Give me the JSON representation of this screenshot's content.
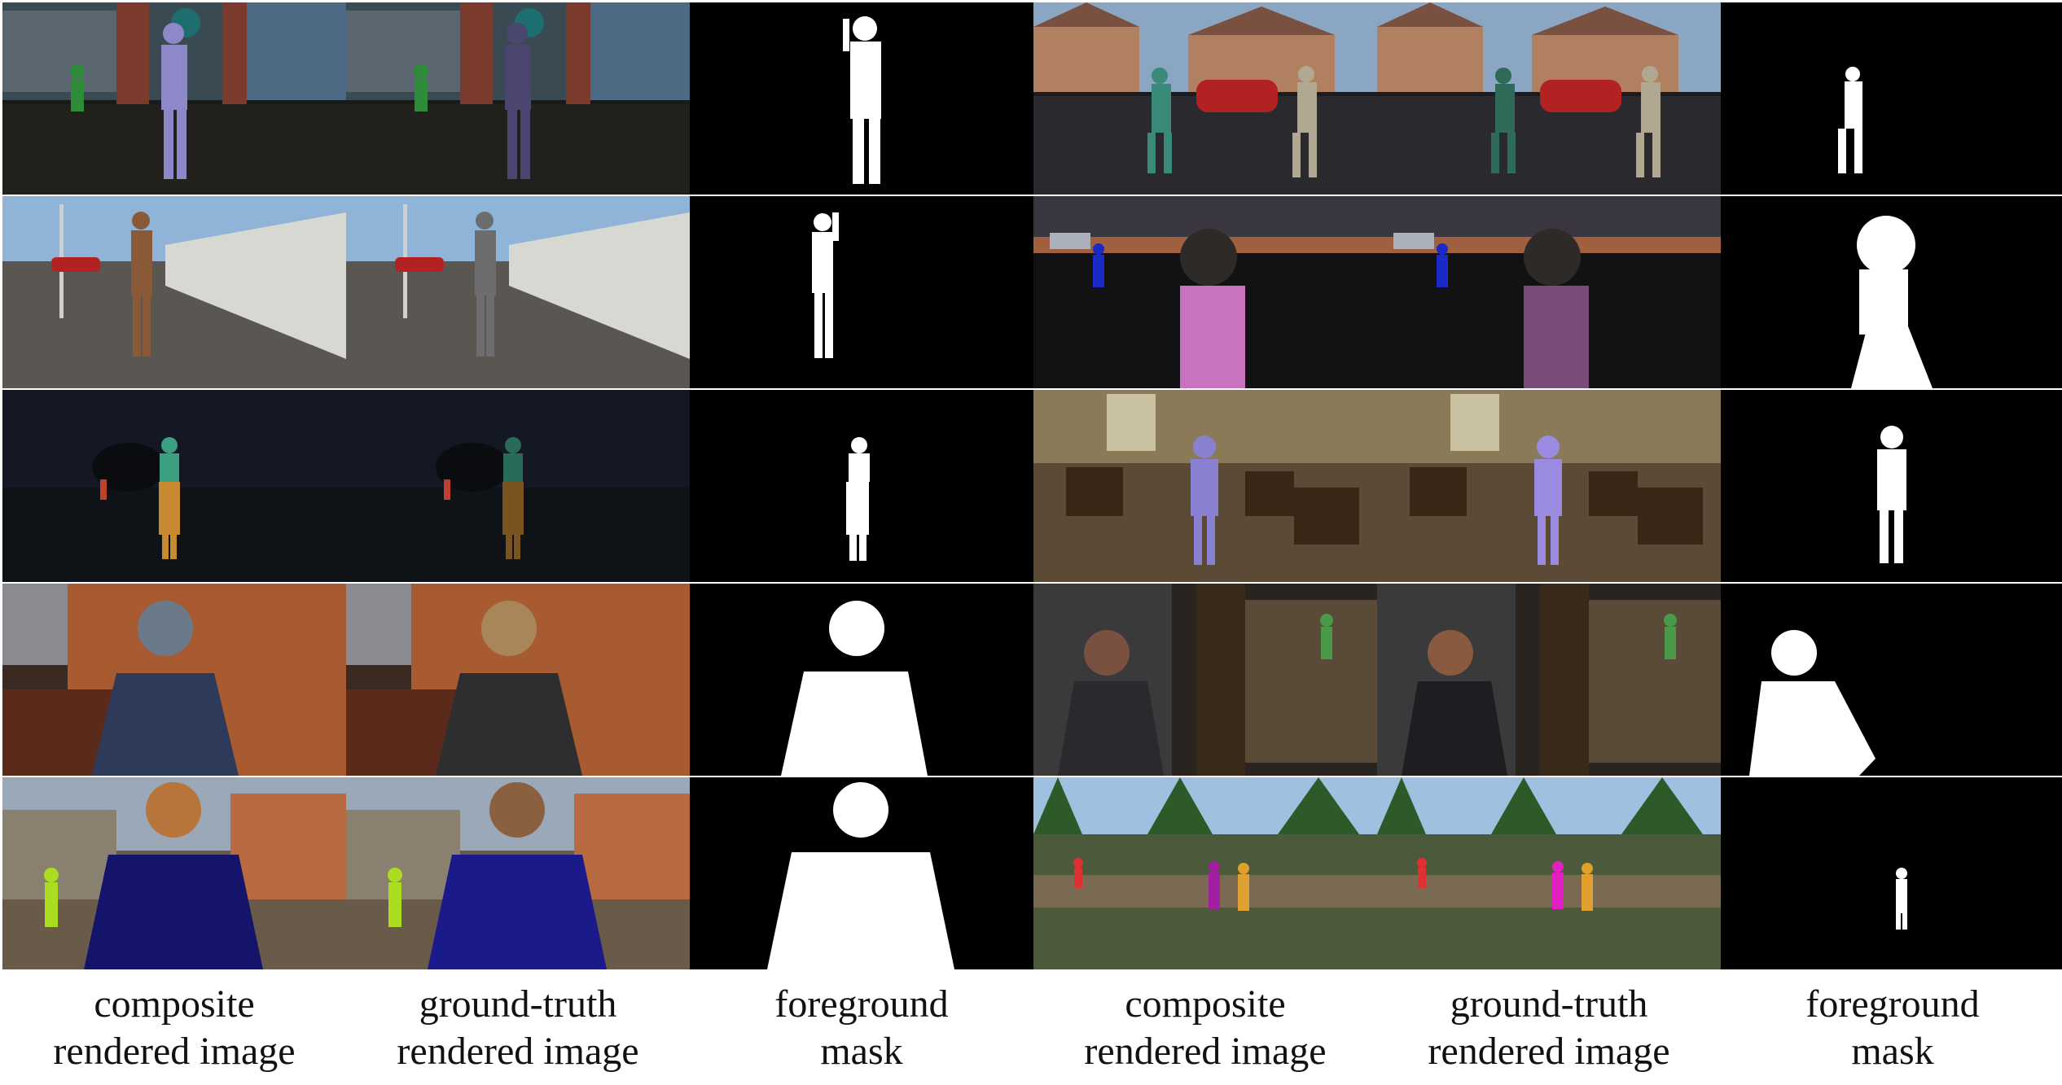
{
  "columns": [
    {
      "line1": "composite",
      "line2": "rendered image"
    },
    {
      "line1": "ground-truth",
      "line2": "rendered image"
    },
    {
      "line1": "foreground",
      "line2": "mask"
    },
    {
      "line1": "composite",
      "line2": "rendered image"
    },
    {
      "line1": "ground-truth",
      "line2": "rendered image"
    },
    {
      "line1": "foreground",
      "line2": "mask"
    }
  ],
  "icons": {
    "mask_silhouette": "person-silhouette",
    "scene_person": "person-figure"
  },
  "colors": {
    "mask_foreground": "#ffffff",
    "mask_background": "#000000",
    "grid_gap": "#ffffff"
  }
}
